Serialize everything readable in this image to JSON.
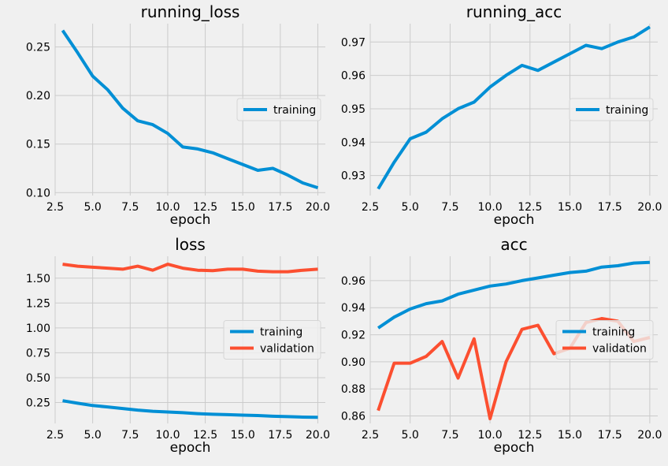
{
  "colors": {
    "training": "#008fd5",
    "validation": "#fc4f30"
  },
  "chart_data": [
    {
      "type": "line",
      "title": "running_loss",
      "xlabel": "epoch",
      "xlim": [
        2.5,
        20.5
      ],
      "ylim": [
        0.097,
        0.274
      ],
      "xticks": [
        2.5,
        5.0,
        7.5,
        10.0,
        12.5,
        15.0,
        17.5,
        20.0
      ],
      "yticks": [
        0.1,
        0.15,
        0.2,
        0.25
      ],
      "ytick_decimals": 2,
      "grid": true,
      "legend": "center-right",
      "x": [
        3,
        4,
        5,
        6,
        7,
        8,
        9,
        10,
        11,
        12,
        13,
        14,
        15,
        16,
        17,
        18,
        19,
        20
      ],
      "series": [
        {
          "name": "training",
          "color": "#008fd5",
          "values": [
            0.267,
            0.244,
            0.22,
            0.206,
            0.187,
            0.174,
            0.17,
            0.161,
            0.147,
            0.145,
            0.141,
            0.135,
            0.129,
            0.123,
            0.125,
            0.118,
            0.11,
            0.105
          ]
        }
      ]
    },
    {
      "type": "line",
      "title": "running_acc",
      "xlabel": "epoch",
      "xlim": [
        2.5,
        20.5
      ],
      "ylim": [
        0.924,
        0.9755
      ],
      "xticks": [
        2.5,
        5.0,
        7.5,
        10.0,
        12.5,
        15.0,
        17.5,
        20.0
      ],
      "yticks": [
        0.93,
        0.94,
        0.95,
        0.96,
        0.97
      ],
      "ytick_decimals": 2,
      "grid": true,
      "legend": "center-right",
      "x": [
        3,
        4,
        5,
        6,
        7,
        8,
        9,
        10,
        11,
        12,
        13,
        14,
        15,
        16,
        17,
        18,
        19,
        20
      ],
      "series": [
        {
          "name": "training",
          "color": "#008fd5",
          "values": [
            0.926,
            0.934,
            0.941,
            0.943,
            0.947,
            0.95,
            0.952,
            0.9565,
            0.96,
            0.963,
            0.9615,
            0.964,
            0.9665,
            0.969,
            0.968,
            0.97,
            0.9715,
            0.9745
          ]
        }
      ]
    },
    {
      "type": "line",
      "title": "loss",
      "xlabel": "epoch",
      "xlim": [
        2.5,
        20.5
      ],
      "ylim": [
        0.04,
        1.72
      ],
      "xticks": [
        2.5,
        5.0,
        7.5,
        10.0,
        12.5,
        15.0,
        17.5,
        20.0
      ],
      "yticks": [
        0.25,
        0.5,
        0.75,
        1.0,
        1.25,
        1.5
      ],
      "ytick_decimals": 2,
      "grid": true,
      "legend": "center-right",
      "x": [
        3,
        4,
        5,
        6,
        7,
        8,
        9,
        10,
        11,
        12,
        13,
        14,
        15,
        16,
        17,
        18,
        19,
        20
      ],
      "series": [
        {
          "name": "training",
          "color": "#008fd5",
          "values": [
            0.268,
            0.243,
            0.22,
            0.206,
            0.19,
            0.174,
            0.162,
            0.155,
            0.148,
            0.138,
            0.132,
            0.128,
            0.123,
            0.119,
            0.112,
            0.108,
            0.103,
            0.102
          ]
        },
        {
          "name": "validation",
          "color": "#fc4f30",
          "values": [
            1.64,
            1.62,
            1.61,
            1.6,
            1.59,
            1.62,
            1.58,
            1.64,
            1.6,
            1.58,
            1.575,
            1.59,
            1.59,
            1.57,
            1.565,
            1.565,
            1.58,
            1.59
          ]
        }
      ]
    },
    {
      "type": "line",
      "title": "acc",
      "xlabel": "epoch",
      "xlim": [
        2.5,
        20.5
      ],
      "ylim": [
        0.8545,
        0.978
      ],
      "xticks": [
        2.5,
        5.0,
        7.5,
        10.0,
        12.5,
        15.0,
        17.5,
        20.0
      ],
      "yticks": [
        0.86,
        0.88,
        0.9,
        0.92,
        0.94,
        0.96
      ],
      "ytick_decimals": 2,
      "grid": true,
      "legend": "center-right",
      "x": [
        3,
        4,
        5,
        6,
        7,
        8,
        9,
        10,
        11,
        12,
        13,
        14,
        15,
        16,
        17,
        18,
        19,
        20
      ],
      "series": [
        {
          "name": "training",
          "color": "#008fd5",
          "values": [
            0.925,
            0.933,
            0.939,
            0.943,
            0.945,
            0.95,
            0.953,
            0.956,
            0.9575,
            0.96,
            0.962,
            0.964,
            0.966,
            0.967,
            0.97,
            0.971,
            0.973,
            0.9735
          ]
        },
        {
          "name": "validation",
          "color": "#fc4f30",
          "values": [
            0.864,
            0.899,
            0.899,
            0.904,
            0.915,
            0.888,
            0.917,
            0.858,
            0.9,
            0.924,
            0.927,
            0.906,
            0.91,
            0.929,
            0.932,
            0.93,
            0.915,
            0.918
          ]
        }
      ]
    }
  ]
}
